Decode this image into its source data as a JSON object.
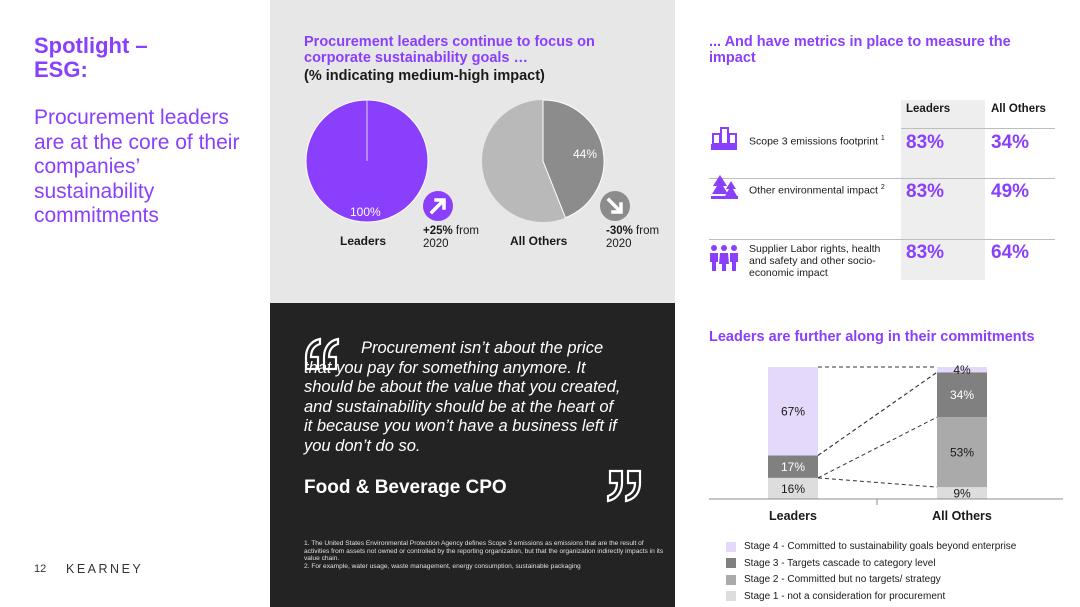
{
  "left": {
    "title": "Spotlight –\nESG:",
    "subtitle": "Procurement leaders are at the core of their companies’ sustainability commitments",
    "page_number": "12",
    "brand": "KEARNEY"
  },
  "goals": {
    "title": "Procurement leaders continue to focus on corporate sustainability goals …",
    "subtitle": "(% indicating medium-high impact)",
    "leaders": {
      "label": "Leaders",
      "value_label": "100%",
      "change_bold": "+25%",
      "change_rest": " from",
      "change_year": "2020",
      "arrow": "up-right-arrow-icon"
    },
    "others": {
      "label": "All Others",
      "value_label": "44%",
      "change_bold": "-30%",
      "change_rest": " from",
      "change_year": "2020",
      "arrow": "down-right-arrow-icon"
    }
  },
  "quote": {
    "text": "Procurement isn’t about the price that you pay for something anymore. It should be about the value that you created, and sustainability should be at the heart of it because you won’t have a business left if you don’t do so.",
    "author": "Food & Beverage CPO",
    "footnote1": "1. The United States Environmental Protection Agency defines Scope 3 emissions as emissions that are the result of activities from assets not owned or controlled by the reporting organization, but that the organization indirectly impacts in its value chain.",
    "footnote2": "2. For example, water usage, waste management, energy consumption, sustainable packaging"
  },
  "metrics": {
    "title": "... And have metrics in place to measure the impact",
    "col_leaders": "Leaders",
    "col_others": "All Others",
    "rows": [
      {
        "icon": "factory-icon",
        "label": "Scope 3 emissions footprint",
        "sup": "1",
        "leaders": "83%",
        "others": "34%"
      },
      {
        "icon": "tree-icon",
        "label": "Other environmental impact",
        "sup": "2",
        "leaders": "83%",
        "others": "49%"
      },
      {
        "icon": "people-icon",
        "label": "Supplier Labor rights, health and safety and other socio-economic impact",
        "sup": "",
        "leaders": "83%",
        "others": "64%"
      }
    ]
  },
  "stages": {
    "title": "Leaders are further along in their commitments"
  },
  "colors": {
    "purple": "#8a3ffc",
    "stage4": "#e5d9fb",
    "stage3": "#808080",
    "stage2": "#aaaaaa",
    "stage1": "#dddddd",
    "pie_others_major": "#b9b9b9",
    "pie_others_minor": "#8c8c8c"
  },
  "chart_data": [
    {
      "type": "pie",
      "title": "Leaders",
      "slices": [
        {
          "label": "100%",
          "value": 100
        }
      ]
    },
    {
      "type": "pie",
      "title": "All Others",
      "slices": [
        {
          "label": "44%",
          "value": 44
        },
        {
          "label": "",
          "value": 56
        }
      ]
    },
    {
      "type": "bar",
      "stacked": true,
      "categories": [
        "Leaders",
        "All Others"
      ],
      "series": [
        {
          "name": "Stage 1 - not a consideration for procurement",
          "values": [
            16,
            9
          ],
          "color_key": "stage1"
        },
        {
          "name": "Stage 2 - Committed but no targets/ strategy",
          "values": [
            0,
            53
          ],
          "color_key": "stage2"
        },
        {
          "name": "Stage 3 - Targets cascade to category level",
          "values": [
            17,
            34
          ],
          "color_key": "stage3"
        },
        {
          "name": "Stage 4 - Committed to sustainability goals beyond enterprise",
          "values": [
            67,
            4
          ],
          "color_key": "stage4"
        }
      ],
      "ylim": [
        0,
        100
      ]
    }
  ]
}
